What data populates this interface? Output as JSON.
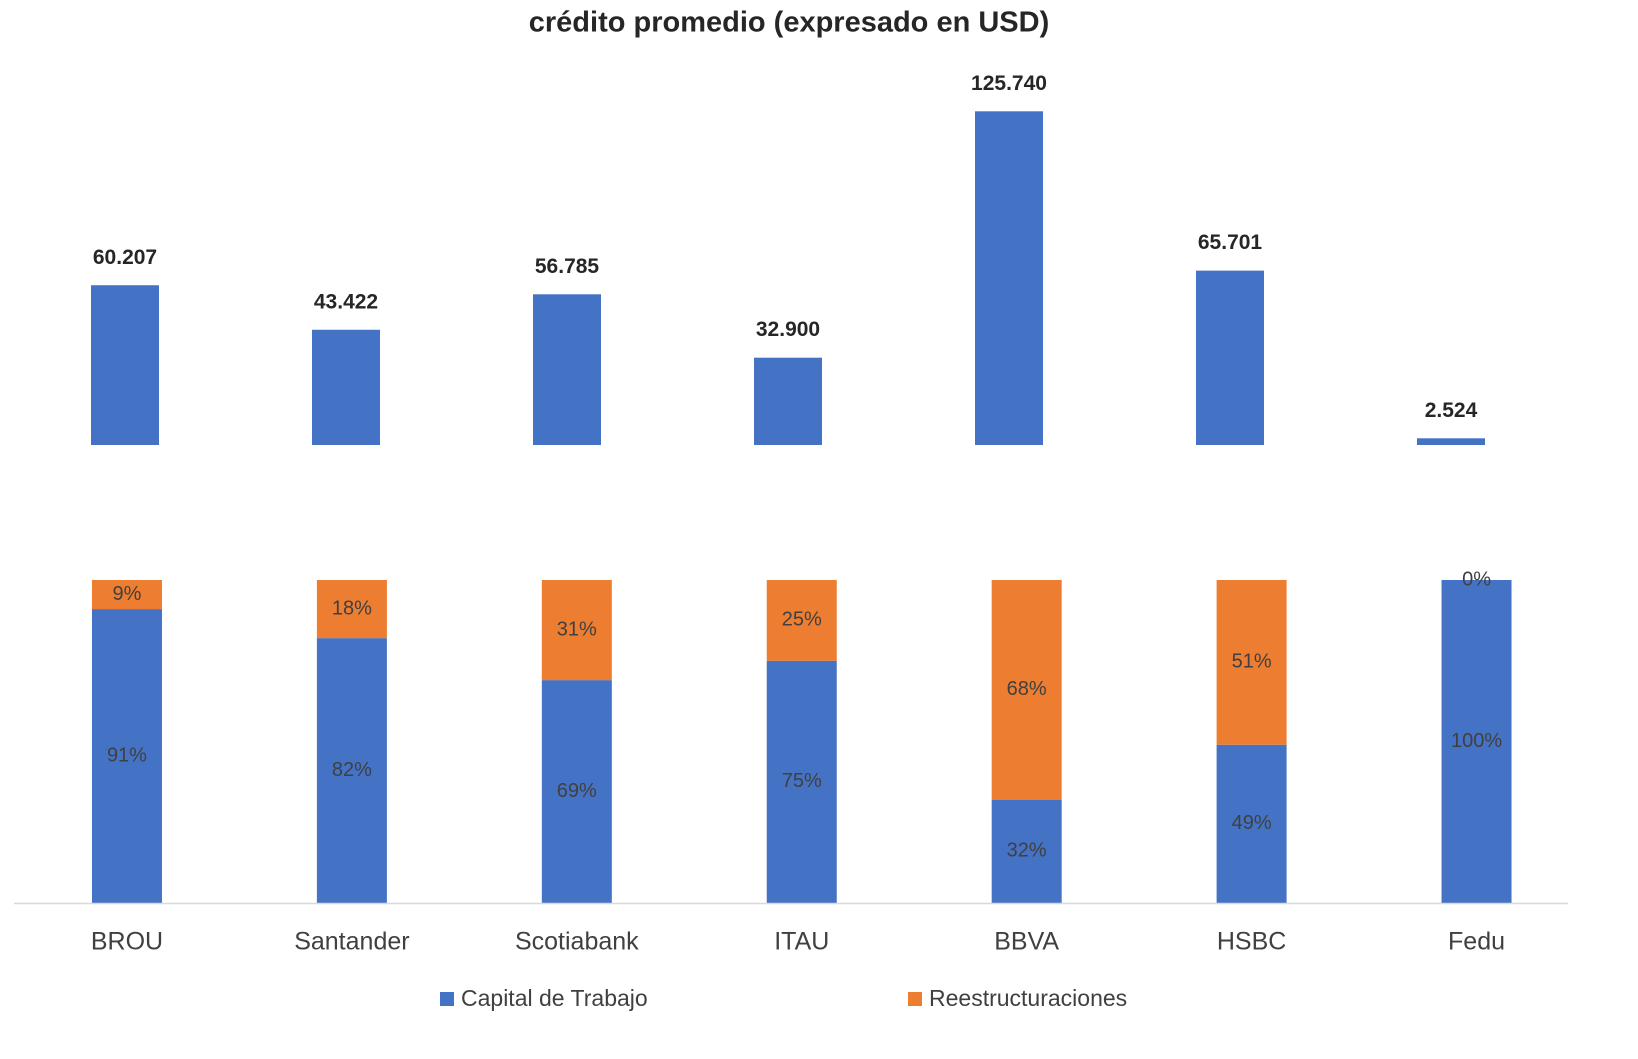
{
  "chart_data": [
    {
      "type": "bar",
      "title": "crédito promedio (expresado en USD)",
      "values": [
        60207,
        43422,
        56785,
        32900,
        125740,
        65701,
        2524
      ],
      "value_labels": [
        "60.207",
        "43.422",
        "56.785",
        "32.900",
        "125.740",
        "65.701",
        "2.524"
      ],
      "color": "#4472c4",
      "ylim": [
        0,
        130000
      ]
    },
    {
      "type": "stacked_bar",
      "categories": [
        "BROU",
        "Santander",
        "Scotiabank",
        "ITAU",
        "BBVA",
        "HSBC",
        "Fedu"
      ],
      "series": [
        {
          "name": "Capital de Trabajo",
          "color": "#4472c4",
          "values": [
            91,
            82,
            69,
            75,
            32,
            49,
            100
          ],
          "value_labels": [
            "91%",
            "82%",
            "69%",
            "75%",
            "32%",
            "49%",
            "100%"
          ]
        },
        {
          "name": "Reestructuraciones",
          "color": "#ed7d31",
          "values": [
            9,
            18,
            31,
            25,
            68,
            51,
            0
          ],
          "value_labels": [
            "9%",
            "18%",
            "31%",
            "25%",
            "68%",
            "51%",
            "0%"
          ]
        }
      ],
      "ylim": [
        0,
        100
      ],
      "legend": "bottom"
    }
  ]
}
